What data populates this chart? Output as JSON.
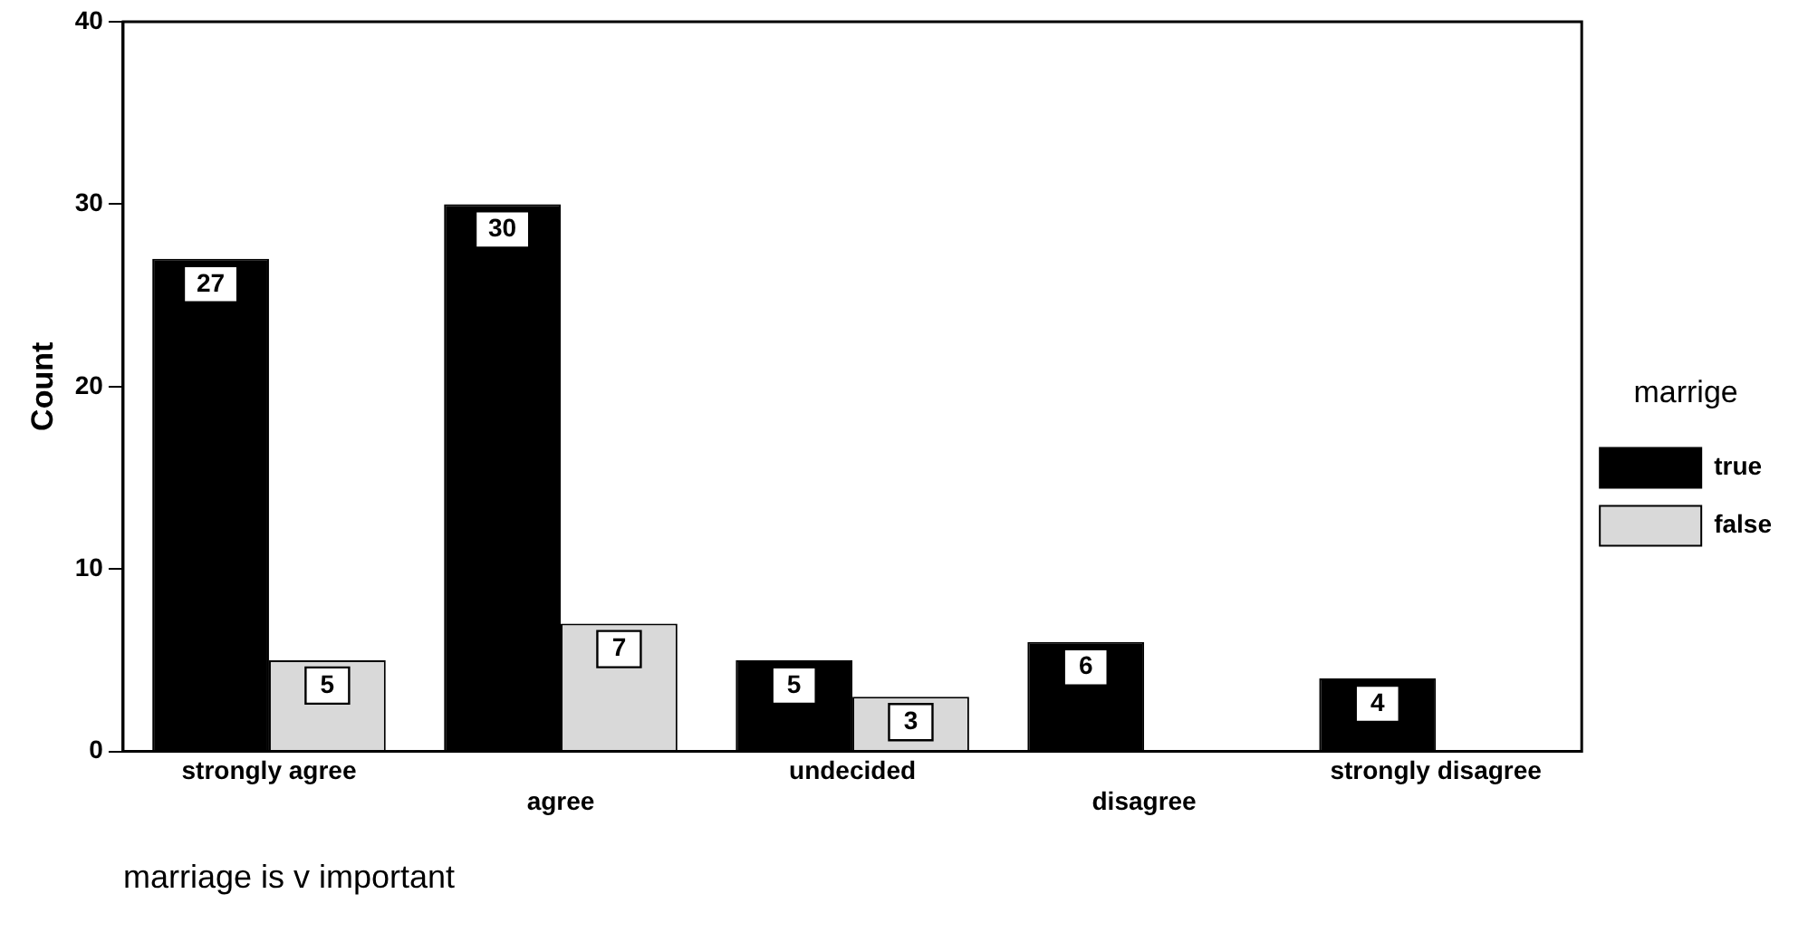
{
  "chart_data": {
    "type": "bar",
    "xlabel": "marriage is v important",
    "ylabel": "Count",
    "legend_title": "marrige",
    "categories": [
      "strongly agree",
      "agree",
      "undecided",
      "disagree",
      "strongly disagree"
    ],
    "series": [
      {
        "name": "true",
        "color": "#000000",
        "values": [
          27,
          30,
          5,
          6,
          4
        ]
      },
      {
        "name": "false",
        "color": "#d9d9d9",
        "values": [
          5,
          7,
          3,
          null,
          null
        ]
      }
    ],
    "ylim": [
      0,
      40
    ],
    "yticks": [
      0,
      10,
      20,
      30,
      40
    ],
    "grid": false,
    "legend": "right",
    "data_labels": true
  }
}
